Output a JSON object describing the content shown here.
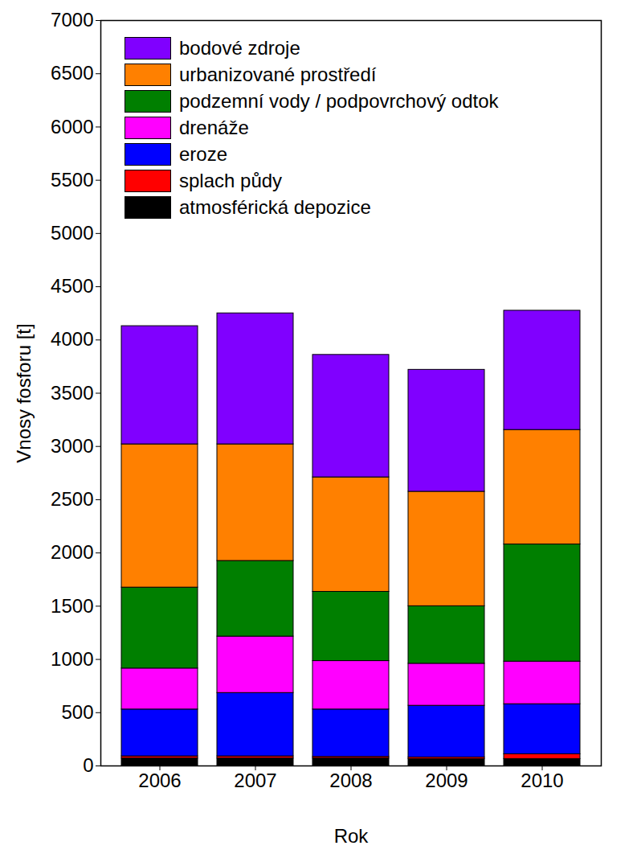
{
  "chart_data": {
    "type": "bar",
    "stacked": true,
    "grid": false,
    "legend": "top-left",
    "xlabel": "Rok",
    "ylabel": "Vnosy fosforu [t]",
    "categories": [
      "2006",
      "2007",
      "2008",
      "2009",
      "2010"
    ],
    "ylim": [
      0,
      7000
    ],
    "yticks": [
      0,
      500,
      1000,
      1500,
      2000,
      2500,
      3000,
      3500,
      4000,
      4500,
      5000,
      5500,
      6000,
      6500,
      7000
    ],
    "series": [
      {
        "name": "atmosférická depozice",
        "color": "#000000",
        "values": [
          70,
          70,
          70,
          65,
          65
        ]
      },
      {
        "name": "splach půdy",
        "color": "#ff0000",
        "values": [
          20,
          20,
          15,
          15,
          45
        ]
      },
      {
        "name": "eroze",
        "color": "#0000ff",
        "values": [
          440,
          595,
          445,
          485,
          470
        ]
      },
      {
        "name": "drenáže",
        "color": "#ff00ff",
        "values": [
          385,
          530,
          455,
          395,
          400
        ]
      },
      {
        "name": "podzemní vody / podpovrchový odtok",
        "color": "#007f00",
        "values": [
          760,
          710,
          650,
          540,
          1100
        ]
      },
      {
        "name": "urbanizované prostředí",
        "color": "#ff8000",
        "values": [
          1345,
          1095,
          1075,
          1075,
          1075
        ]
      },
      {
        "name": "bodové zdroje",
        "color": "#8000ff",
        "values": [
          1110,
          1230,
          1150,
          1145,
          1120
        ]
      }
    ]
  }
}
